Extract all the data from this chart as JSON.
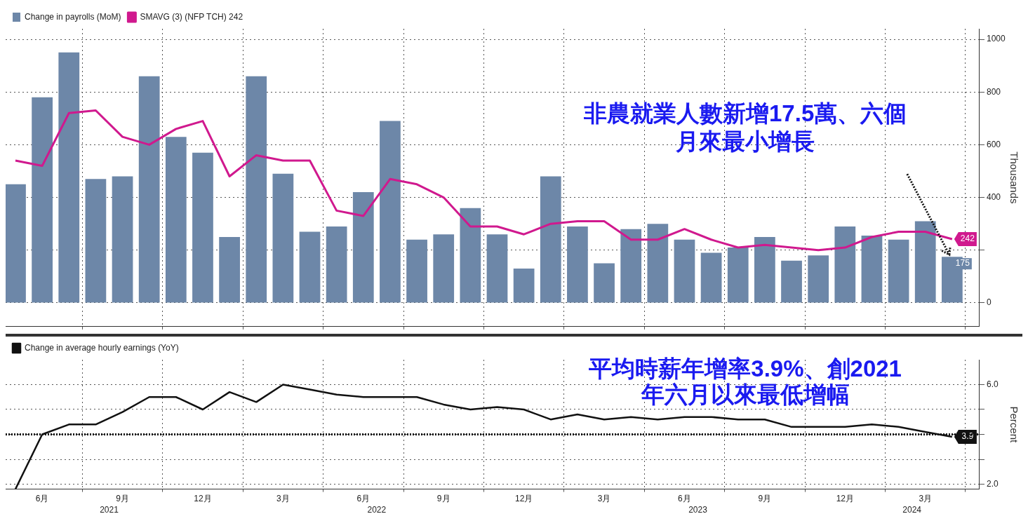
{
  "chart_data": [
    {
      "type": "bar",
      "ylabel": "Thousands",
      "legend": "top left",
      "grid": true,
      "tick_labels": "y",
      "x": [
        "2021-05",
        "2021-06",
        "2021-07",
        "2021-08",
        "2021-09",
        "2021-10",
        "2021-11",
        "2021-12",
        "2022-01",
        "2022-02",
        "2022-03",
        "2022-04",
        "2022-05",
        "2022-06",
        "2022-07",
        "2022-08",
        "2022-09",
        "2022-10",
        "2022-11",
        "2022-12",
        "2023-01",
        "2023-02",
        "2023-03",
        "2023-04",
        "2023-05",
        "2023-06",
        "2023-07",
        "2023-08",
        "2023-09",
        "2023-10",
        "2023-11",
        "2023-12",
        "2024-01",
        "2024-02",
        "2024-03",
        "2024-04"
      ],
      "xlim": [
        "2021-04-20",
        "2024-05-01"
      ],
      "xticks": [
        {
          "value": "2021-06",
          "label": null
        },
        {
          "value": "2021-09",
          "label": null
        },
        {
          "value": "2021-12",
          "label": null
        },
        {
          "value": "2022-03",
          "label": null
        },
        {
          "value": "2022-06",
          "label": null
        },
        {
          "value": "2022-09",
          "label": null
        },
        {
          "value": "2022-12",
          "label": null
        },
        {
          "value": "2023-03",
          "label": null
        },
        {
          "value": "2023-06",
          "label": null
        },
        {
          "value": "2023-09",
          "label": null
        },
        {
          "value": "2023-12",
          "label": null
        },
        {
          "value": "2024-03",
          "label": null
        }
      ],
      "ylim": [
        -90,
        1040
      ],
      "yticks": [
        0,
        {
          "value": 200,
          "label": null
        },
        400,
        600,
        800,
        1000
      ],
      "series": [
        {
          "name": "Change in payrolls (MoM)",
          "color": "#6d87a8",
          "values": [
            450,
            780,
            950,
            470,
            480,
            860,
            630,
            570,
            250,
            860,
            490,
            270,
            290,
            420,
            690,
            240,
            260,
            360,
            260,
            130,
            480,
            290,
            150,
            280,
            300,
            240,
            190,
            210,
            250,
            160,
            180,
            290,
            255,
            240,
            310,
            175
          ],
          "value_labels": [
            null,
            null,
            null,
            null,
            null,
            null,
            null,
            null,
            null,
            null,
            null,
            null,
            null,
            null,
            null,
            null,
            null,
            null,
            null,
            null,
            null,
            null,
            null,
            null,
            null,
            null,
            null,
            null,
            null,
            null,
            null,
            null,
            null,
            null,
            null,
            "175"
          ]
        },
        {
          "name": "SMAVG (3) (NFP TCH) 242",
          "type": "line",
          "color": "#d0198e",
          "values": [
            540,
            520,
            720,
            730,
            630,
            600,
            660,
            690,
            480,
            560,
            540,
            540,
            350,
            330,
            470,
            450,
            400,
            290,
            290,
            260,
            300,
            310,
            310,
            240,
            240,
            280,
            240,
            210,
            220,
            210,
            200,
            210,
            250,
            270,
            270,
            242
          ],
          "value_labels": [
            null,
            null,
            null,
            null,
            null,
            null,
            null,
            null,
            null,
            null,
            null,
            null,
            null,
            null,
            null,
            null,
            null,
            null,
            null,
            null,
            null,
            null,
            null,
            null,
            null,
            null,
            null,
            null,
            null,
            null,
            null,
            null,
            null,
            null,
            null,
            "242"
          ]
        }
      ],
      "annotations": [
        {
          "text": "非農就業人數新增17.5萬、六個月來最小增長",
          "x": "2024-04",
          "y": 175
        }
      ]
    },
    {
      "type": "line",
      "ylabel": "Percent",
      "legend": "top left",
      "grid": true,
      "x": [
        "2021-05",
        "2021-06",
        "2021-07",
        "2021-08",
        "2021-09",
        "2021-10",
        "2021-11",
        "2021-12",
        "2022-01",
        "2022-02",
        "2022-03",
        "2022-04",
        "2022-05",
        "2022-06",
        "2022-07",
        "2022-08",
        "2022-09",
        "2022-10",
        "2022-11",
        "2022-12",
        "2023-01",
        "2023-02",
        "2023-03",
        "2023-04",
        "2023-05",
        "2023-06",
        "2023-07",
        "2023-08",
        "2023-09",
        "2023-10",
        "2023-11",
        "2023-12",
        "2024-01",
        "2024-02",
        "2024-03",
        "2024-04"
      ],
      "xlim": [
        "2021-04-20",
        "2024-05-01"
      ],
      "xticks": [
        {
          "value": "2021-06",
          "label": "6月"
        },
        {
          "value": "2021-09",
          "label": "9月"
        },
        {
          "value": "2021-12",
          "label": "12月"
        },
        {
          "value": "2022-03",
          "label": "3月"
        },
        {
          "value": "2022-06",
          "label": "6月"
        },
        {
          "value": "2022-09",
          "label": "9月"
        },
        {
          "value": "2022-12",
          "label": "12月"
        },
        {
          "value": "2023-03",
          "label": "3月"
        },
        {
          "value": "2023-06",
          "label": "6月"
        },
        {
          "value": "2023-09",
          "label": "9月"
        },
        {
          "value": "2023-12",
          "label": "12月"
        },
        {
          "value": "2024-03",
          "label": "3月"
        }
      ],
      "ylim": [
        1.8,
        7.0
      ],
      "yticks": [
        {
          "value": 6,
          "label": "6.0"
        },
        {
          "value": 5,
          "label": null
        },
        {
          "value": 4,
          "label": null
        },
        {
          "value": 3,
          "label": null
        },
        {
          "value": 2,
          "label": "2.0"
        }
      ],
      "series": [
        {
          "name": "Change in average hourly earnings (YoY)",
          "color": "#111111",
          "values": [
            1.8,
            4.0,
            4.4,
            4.4,
            4.9,
            5.5,
            5.5,
            5.0,
            5.7,
            5.3,
            6.0,
            5.8,
            5.6,
            5.5,
            5.5,
            5.5,
            5.2,
            5.0,
            5.1,
            5.0,
            4.6,
            4.8,
            4.6,
            4.7,
            4.6,
            4.7,
            4.7,
            4.6,
            4.6,
            4.3,
            4.3,
            4.3,
            4.4,
            4.3,
            4.1,
            3.9
          ],
          "value_labels": [
            null,
            null,
            null,
            null,
            null,
            null,
            null,
            null,
            null,
            null,
            null,
            null,
            null,
            null,
            null,
            null,
            null,
            null,
            null,
            null,
            null,
            null,
            null,
            null,
            null,
            null,
            null,
            null,
            null,
            null,
            null,
            null,
            null,
            null,
            null,
            "3.9"
          ]
        }
      ],
      "ref_lines": [
        {
          "axis": "y",
          "value": 4.0,
          "line_style": "dotted",
          "color": "#111111"
        }
      ],
      "annotations": [
        {
          "text": "平均時薪年增率3.9%、創2021年六月以來最低增幅"
        },
        "2021",
        "2022",
        "2023",
        "2024"
      ]
    }
  ]
}
